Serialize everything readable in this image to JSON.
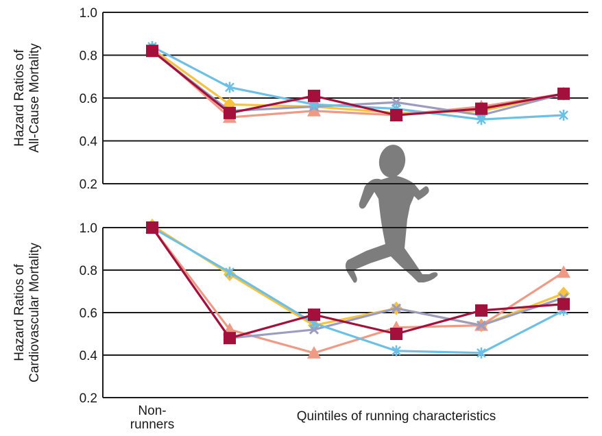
{
  "chart_data": [
    {
      "type": "line",
      "panel": "top",
      "ylabel_lines": [
        "Hazard Ratios of",
        "All-Cause Mortality"
      ],
      "ylim": [
        0.2,
        1.0
      ],
      "yticks": [
        "0.2",
        "0.4",
        "0.6",
        "0.8",
        "1.0"
      ],
      "grid": true,
      "x": [
        0,
        1,
        2,
        3,
        4,
        5
      ],
      "series": [
        {
          "marker": "diamond",
          "color": "#f5c242",
          "values": [
            0.83,
            0.57,
            0.56,
            0.53,
            0.54,
            0.62
          ]
        },
        {
          "marker": "triangle",
          "color": "#ee9a85",
          "values": [
            0.83,
            0.51,
            0.54,
            0.52,
            0.56,
            0.62
          ]
        },
        {
          "marker": "circle",
          "color": "#9c9cc0",
          "values": [
            0.82,
            0.54,
            0.56,
            0.58,
            0.52,
            0.62
          ]
        },
        {
          "marker": "star",
          "color": "#6cc0e6",
          "values": [
            0.84,
            0.65,
            0.57,
            0.55,
            0.5,
            0.52
          ]
        },
        {
          "marker": "square",
          "color": "#a3103c",
          "values": [
            0.82,
            0.53,
            0.61,
            0.52,
            0.55,
            0.62
          ]
        }
      ]
    },
    {
      "type": "line",
      "panel": "bottom",
      "ylabel_lines": [
        "Hazard Ratios of",
        "Cardiovascular Mortality"
      ],
      "ylim": [
        0.2,
        1.0
      ],
      "yticks": [
        "0.2",
        "0.4",
        "0.6",
        "0.8",
        "1.0"
      ],
      "grid": true,
      "x": [
        0,
        1,
        2,
        3,
        4,
        5
      ],
      "series": [
        {
          "marker": "diamond",
          "color": "#f5c242",
          "values": [
            1.01,
            0.78,
            0.54,
            0.62,
            0.54,
            0.69
          ]
        },
        {
          "marker": "triangle",
          "color": "#ee9a85",
          "values": [
            1.0,
            0.52,
            0.41,
            0.53,
            0.54,
            0.79
          ]
        },
        {
          "marker": "circle",
          "color": "#9c9cc0",
          "values": [
            1.0,
            0.48,
            0.52,
            0.62,
            0.54,
            0.67
          ]
        },
        {
          "marker": "star",
          "color": "#6cc0e6",
          "values": [
            1.0,
            0.79,
            0.55,
            0.42,
            0.41,
            0.61
          ]
        },
        {
          "marker": "square",
          "color": "#a3103c",
          "values": [
            1.0,
            0.48,
            0.59,
            0.5,
            0.61,
            0.64
          ]
        }
      ]
    }
  ],
  "x_labels": {
    "nonrunners_lines": [
      "Non-",
      "runners"
    ],
    "quintiles": "Quintiles of running characteristics"
  },
  "runner_icon": "runner-silhouette-icon"
}
